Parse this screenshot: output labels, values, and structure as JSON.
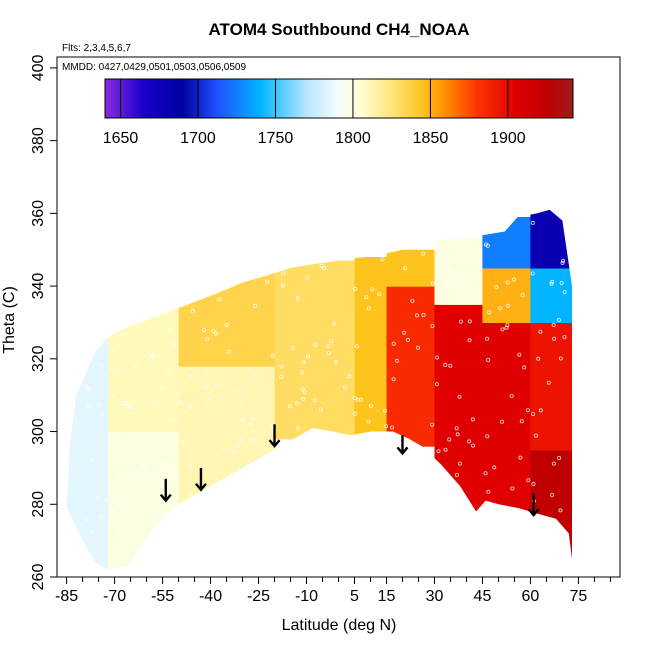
{
  "chart_data": {
    "type": "heatmap",
    "title": "ATOM4 Southbound CH4_NOAA",
    "flights_note": "Flts: 2,3,4,5,6,7",
    "dates_note": "MMDD: 0427,0429,0501,0503,0506,0509",
    "xlabel": "Latitude (deg N)",
    "ylabel": "Theta (C)",
    "xlim": [
      -88,
      88
    ],
    "ylim": [
      260,
      403
    ],
    "x_ticks": [
      -85,
      -70,
      -55,
      -40,
      -25,
      -10,
      5,
      15,
      30,
      45,
      60,
      75
    ],
    "x_minor_ticks": [
      -80,
      -75,
      -65,
      -60,
      -50,
      -45,
      -35,
      -30,
      -20,
      -15,
      -5,
      0,
      10,
      20,
      25,
      35,
      40,
      50,
      55,
      65,
      70,
      80,
      85
    ],
    "y_ticks": [
      260,
      280,
      300,
      320,
      340,
      360,
      380,
      400
    ],
    "colorbar": {
      "range": [
        1640,
        1942
      ],
      "tick_values": [
        1650,
        1700,
        1750,
        1800,
        1850,
        1900
      ],
      "tick_labels": [
        "1650",
        "1700",
        "1750",
        "1800",
        "1850",
        "1900"
      ],
      "colors": [
        {
          "v": 1640,
          "c": "#8a2be2"
        },
        {
          "v": 1665,
          "c": "#1a00cc"
        },
        {
          "v": 1690,
          "c": "#0000a0"
        },
        {
          "v": 1712,
          "c": "#1f4fff"
        },
        {
          "v": 1740,
          "c": "#00b4ff"
        },
        {
          "v": 1770,
          "c": "#b8e6ff"
        },
        {
          "v": 1790,
          "c": "#f2fbff"
        },
        {
          "v": 1805,
          "c": "#ffffd2"
        },
        {
          "v": 1825,
          "c": "#ffe57a"
        },
        {
          "v": 1845,
          "c": "#ffc31e"
        },
        {
          "v": 1860,
          "c": "#ff8c00"
        },
        {
          "v": 1880,
          "c": "#ff3300"
        },
        {
          "v": 1905,
          "c": "#e00000"
        },
        {
          "v": 1925,
          "c": "#c00000"
        },
        {
          "v": 1942,
          "c": "#9e1b1b"
        }
      ]
    },
    "data_region": {
      "upper_boundary": [
        [
          -78,
          318
        ],
        [
          -76,
          322
        ],
        [
          -72,
          326
        ],
        [
          -68,
          328
        ],
        [
          -62,
          330
        ],
        [
          -56,
          332
        ],
        [
          -50,
          334
        ],
        [
          -44,
          336
        ],
        [
          -38,
          338
        ],
        [
          -30,
          341
        ],
        [
          -22,
          343
        ],
        [
          -15,
          345
        ],
        [
          -8,
          346
        ],
        [
          0,
          347
        ],
        [
          8,
          348
        ],
        [
          15,
          349
        ],
        [
          20,
          350
        ],
        [
          25,
          351
        ],
        [
          35,
          353
        ],
        [
          45,
          354
        ],
        [
          52,
          355
        ],
        [
          56,
          359
        ],
        [
          62,
          360
        ],
        [
          66,
          361
        ],
        [
          70,
          358
        ],
        [
          73,
          340
        ]
      ],
      "lower_boundary": [
        [
          73,
          265
        ],
        [
          72,
          272
        ],
        [
          68,
          276
        ],
        [
          64,
          277
        ],
        [
          60,
          278
        ],
        [
          56,
          279
        ],
        [
          50,
          280
        ],
        [
          46,
          281
        ],
        [
          43,
          278
        ],
        [
          38,
          285
        ],
        [
          32,
          291
        ],
        [
          26,
          296
        ],
        [
          22,
          298
        ],
        [
          17,
          300
        ],
        [
          10,
          300
        ],
        [
          4,
          299
        ],
        [
          -2,
          300
        ],
        [
          -8,
          301
        ],
        [
          -14,
          298
        ],
        [
          -20,
          295
        ],
        [
          -26,
          292
        ],
        [
          -32,
          289
        ],
        [
          -38,
          286
        ],
        [
          -44,
          283
        ],
        [
          -50,
          280
        ],
        [
          -54,
          277
        ],
        [
          -58,
          273
        ],
        [
          -62,
          268
        ],
        [
          -66,
          263
        ],
        [
          -72,
          262
        ],
        [
          -76,
          264
        ],
        [
          -80,
          270
        ],
        [
          -85,
          279
        ],
        [
          -84,
          296
        ],
        [
          -82,
          310
        ],
        [
          -80,
          314
        ]
      ]
    },
    "field_bands": [
      {
        "lat_min": -85,
        "lat_max": -72,
        "theta_min": 262,
        "theta_max": 330,
        "value": 1785
      },
      {
        "lat_min": -72,
        "lat_max": -50,
        "theta_min": 262,
        "theta_max": 300,
        "value": 1800
      },
      {
        "lat_min": -72,
        "lat_max": -50,
        "theta_min": 300,
        "theta_max": 334,
        "value": 1810
      },
      {
        "lat_min": -50,
        "lat_max": -20,
        "theta_min": 280,
        "theta_max": 318,
        "value": 1812
      },
      {
        "lat_min": -50,
        "lat_max": -20,
        "theta_min": 318,
        "theta_max": 345,
        "value": 1835
      },
      {
        "lat_min": -20,
        "lat_max": 5,
        "theta_min": 298,
        "theta_max": 347,
        "value": 1830
      },
      {
        "lat_min": 5,
        "lat_max": 15,
        "theta_min": 298,
        "theta_max": 348,
        "value": 1845
      },
      {
        "lat_min": 15,
        "lat_max": 30,
        "theta_min": 296,
        "theta_max": 340,
        "value": 1885
      },
      {
        "lat_min": 15,
        "lat_max": 30,
        "theta_min": 340,
        "theta_max": 350,
        "value": 1845
      },
      {
        "lat_min": 30,
        "lat_max": 45,
        "theta_min": 278,
        "theta_max": 335,
        "value": 1905
      },
      {
        "lat_min": 30,
        "lat_max": 45,
        "theta_min": 335,
        "theta_max": 353,
        "value": 1800
      },
      {
        "lat_min": 45,
        "lat_max": 60,
        "theta_min": 278,
        "theta_max": 330,
        "value": 1905
      },
      {
        "lat_min": 45,
        "lat_max": 60,
        "theta_min": 330,
        "theta_max": 345,
        "value": 1850
      },
      {
        "lat_min": 45,
        "lat_max": 60,
        "theta_min": 345,
        "theta_max": 359,
        "value": 1725
      },
      {
        "lat_min": 60,
        "lat_max": 73,
        "theta_min": 265,
        "theta_max": 295,
        "value": 1925
      },
      {
        "lat_min": 60,
        "lat_max": 73,
        "theta_min": 295,
        "theta_max": 330,
        "value": 1895
      },
      {
        "lat_min": 60,
        "lat_max": 73,
        "theta_min": 330,
        "theta_max": 345,
        "value": 1740
      },
      {
        "lat_min": 60,
        "lat_max": 73,
        "theta_min": 345,
        "theta_max": 361,
        "value": 1680
      }
    ],
    "markers": [
      {
        "lat": -54,
        "theta_top": 287,
        "theta_tip": 281
      },
      {
        "lat": -43,
        "theta_top": 290,
        "theta_tip": 284
      },
      {
        "lat": -20,
        "theta_top": 302,
        "theta_tip": 296
      },
      {
        "lat": 20,
        "theta_top": 299,
        "theta_tip": 294
      },
      {
        "lat": 61,
        "theta_top": 283,
        "theta_tip": 277
      }
    ],
    "grid": false,
    "legend": "top colorbar"
  }
}
